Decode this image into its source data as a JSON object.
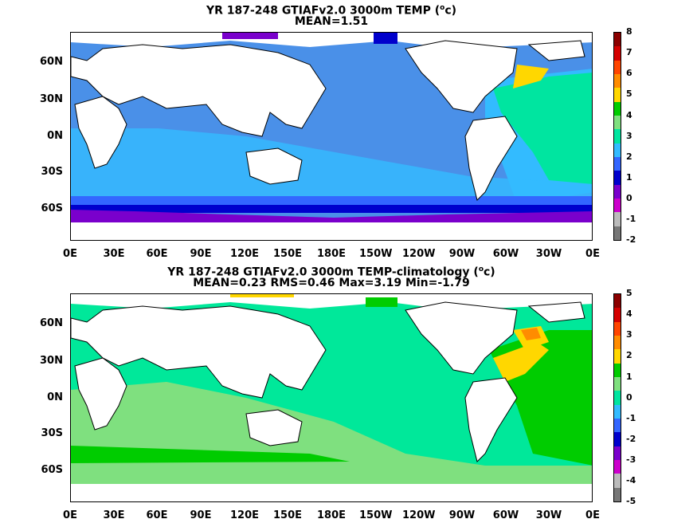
{
  "panels": [
    {
      "title": "YR 187-248 GTIAFv2.0 3000m TEMP (",
      "title_sup": "o",
      "title_tail": "c)",
      "subtitle": "MEAN=1.51",
      "colorbar_labels": [
        "8",
        "7",
        "6",
        "5",
        "4",
        "3",
        "2",
        "1",
        "0",
        "-1",
        "-2"
      ],
      "colorbar_colors": [
        "#8b0000",
        "#d40000",
        "#ff4500",
        "#ff8c00",
        "#ffd700",
        "#00cc00",
        "#7fe07f",
        "#00e5a0",
        "#33bbff",
        "#3366ff",
        "#0000cc",
        "#7a00cc",
        "#cc00cc",
        "#bbbbbb",
        "#777777"
      ],
      "ocean_color": "#4a90e8"
    },
    {
      "title": "YR 187-248 GTIAFv2.0 3000m TEMP-climatology (",
      "title_sup": "o",
      "title_tail": "c)",
      "subtitle": "MEAN=0.23   RMS=0.46   Max=3.19   Min=-1.79",
      "colorbar_labels": [
        "5",
        "4",
        "3",
        "2",
        "1",
        "0",
        "-1",
        "-2",
        "-3",
        "-4",
        "-5"
      ],
      "colorbar_colors": [
        "#8b0000",
        "#d40000",
        "#ff4500",
        "#ff8c00",
        "#ffd700",
        "#00cc00",
        "#7fe07f",
        "#00e5a0",
        "#33bbff",
        "#3366ff",
        "#0000cc",
        "#7a00cc",
        "#cc00cc",
        "#bbbbbb",
        "#777777"
      ],
      "ocean_color": "#00e89a"
    }
  ],
  "lat_labels": [
    "60N",
    "30N",
    "0N",
    "30S",
    "60S"
  ],
  "lon_labels": [
    "0E",
    "30E",
    "60E",
    "90E",
    "120E",
    "150E",
    "180E",
    "150W",
    "120W",
    "90W",
    "60W",
    "30W",
    "0E"
  ]
}
